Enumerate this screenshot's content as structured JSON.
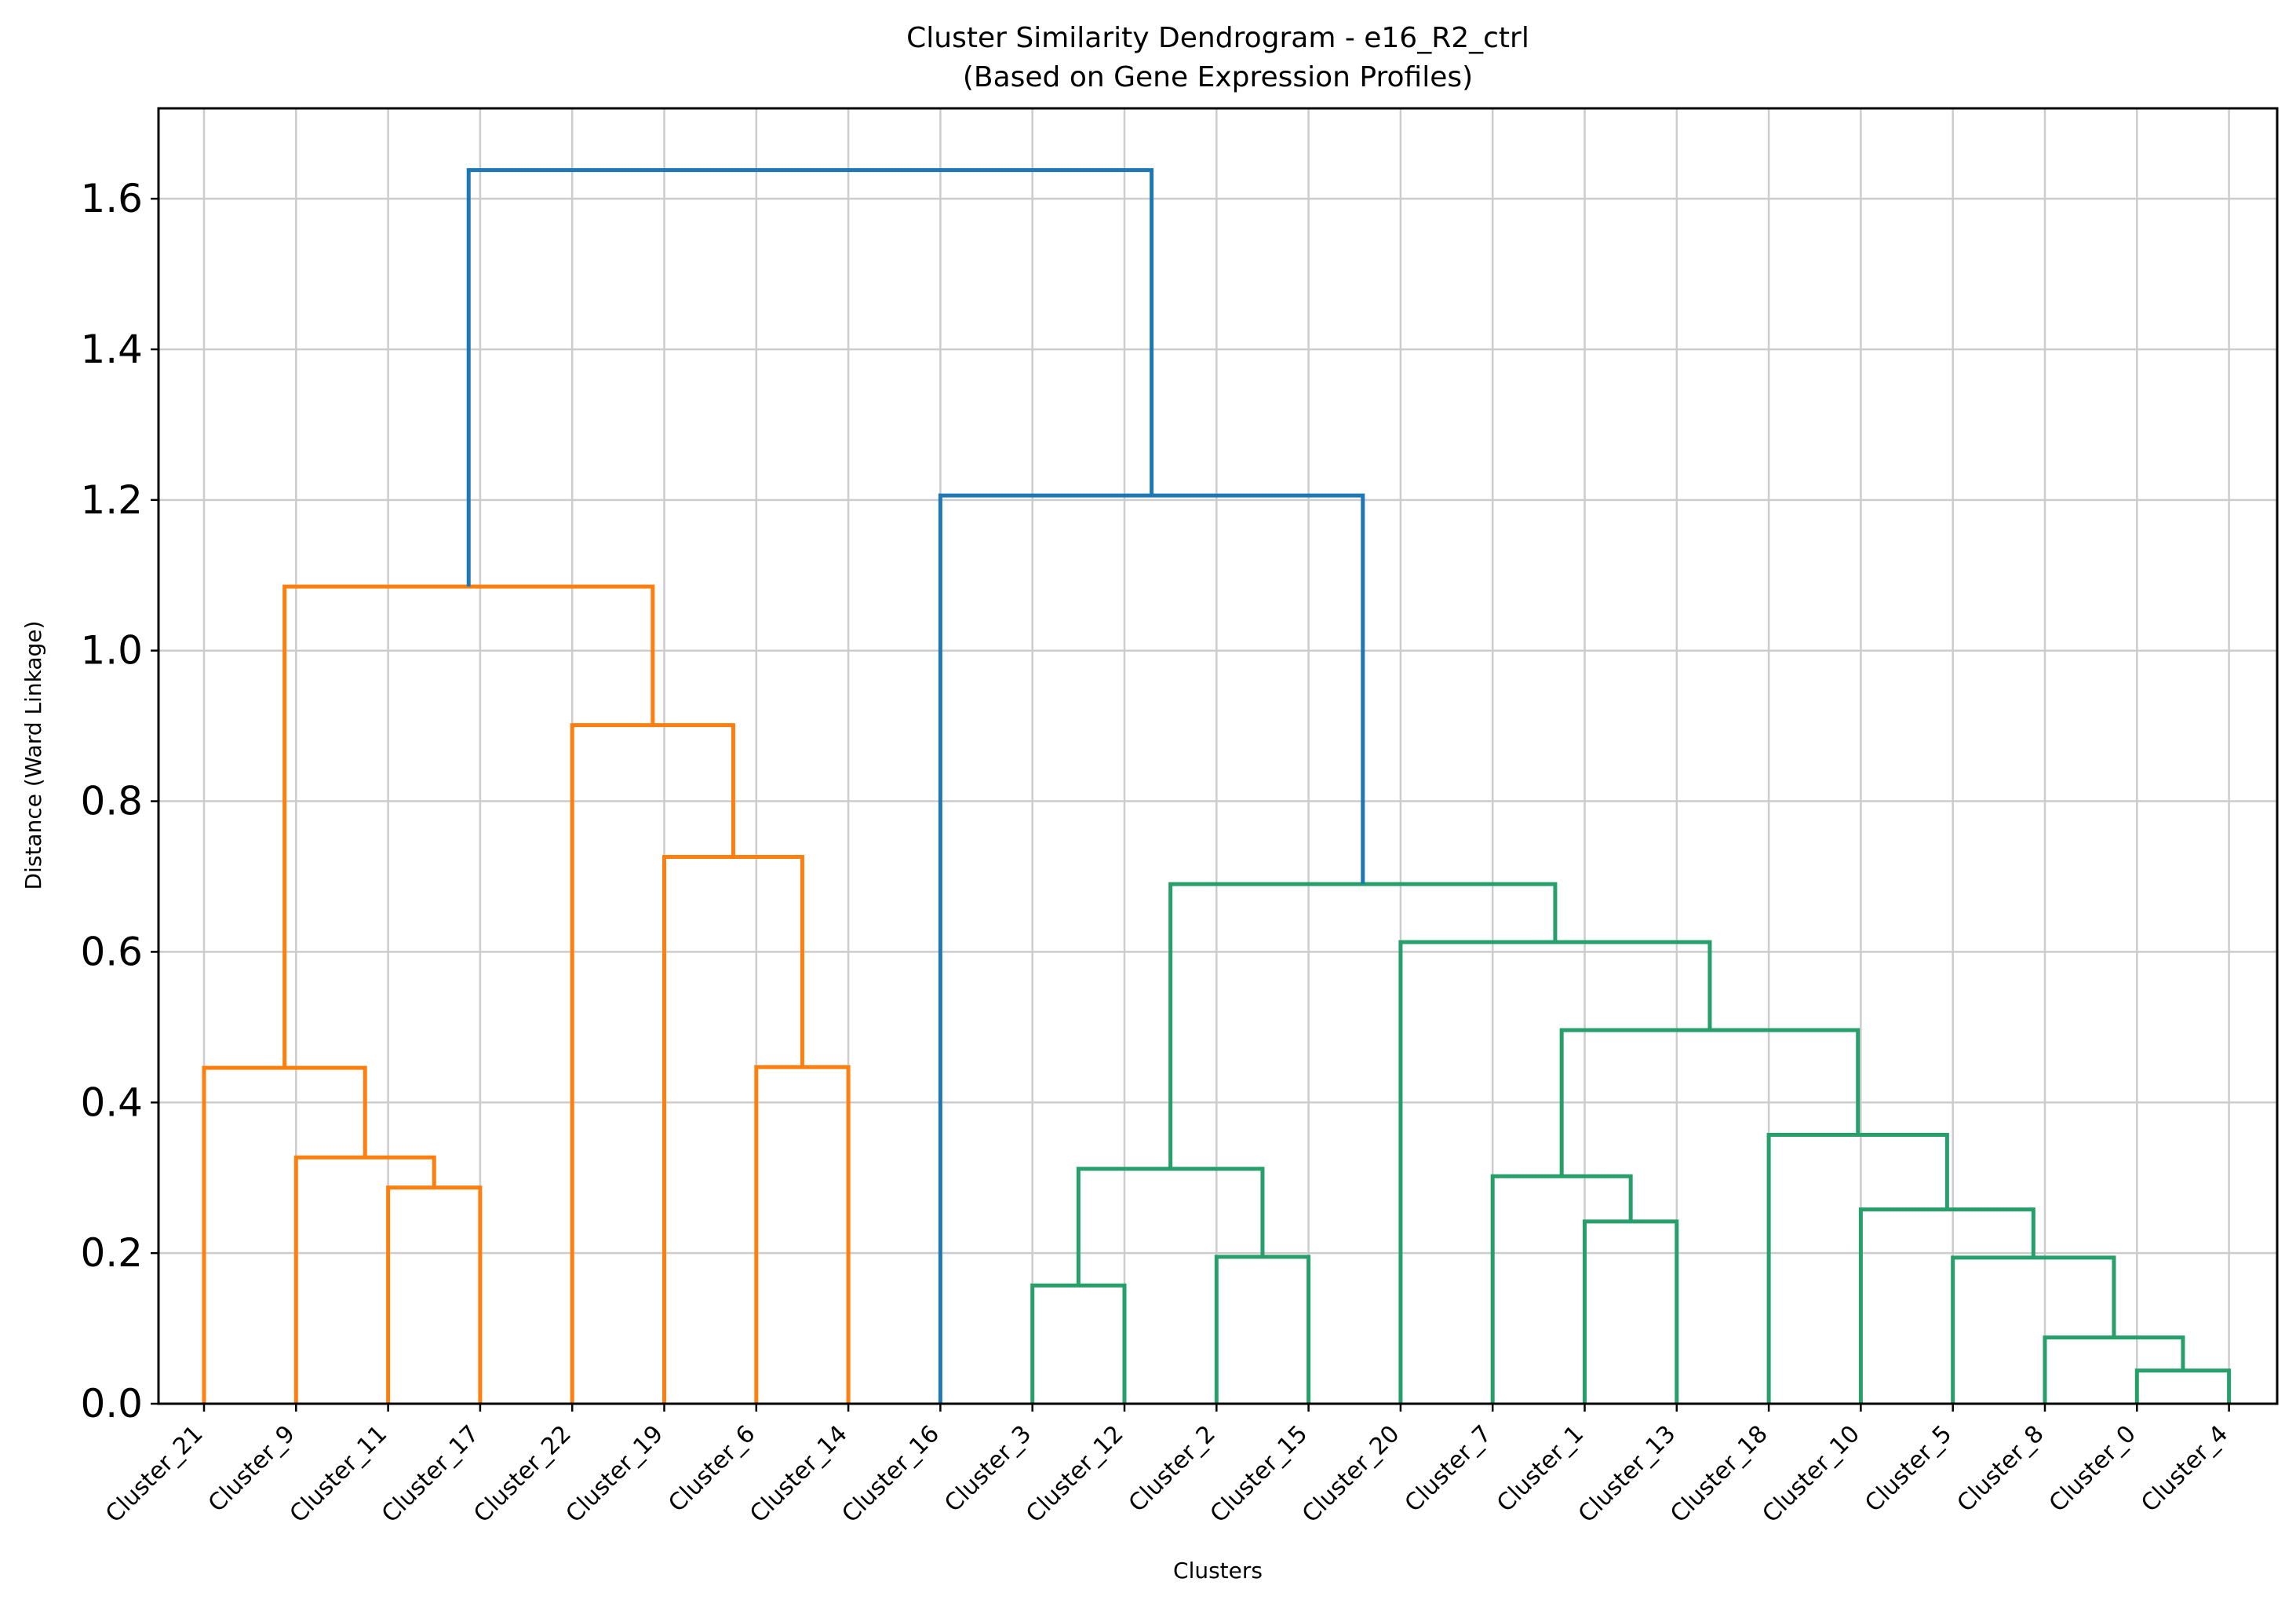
{
  "chart_data": {
    "type": "dendrogram",
    "title": "Cluster Similarity Dendrogram - e16_R2_ctrl",
    "subtitle": "(Based on Gene Expression Profiles)",
    "xlabel": "Clusters",
    "ylabel": "Distance (Ward Linkage)",
    "ylim": [
      0,
      1.72
    ],
    "yticks": [
      "0.0",
      "0.2",
      "0.4",
      "0.6",
      "0.8",
      "1.0",
      "1.2",
      "1.4",
      "1.6"
    ],
    "grid": true,
    "leaves": [
      "Cluster_21",
      "Cluster_9",
      "Cluster_11",
      "Cluster_17",
      "Cluster_22",
      "Cluster_19",
      "Cluster_6",
      "Cluster_14",
      "Cluster_16",
      "Cluster_3",
      "Cluster_12",
      "Cluster_2",
      "Cluster_15",
      "Cluster_20",
      "Cluster_7",
      "Cluster_1",
      "Cluster_13",
      "Cluster_18",
      "Cluster_10",
      "Cluster_5",
      "Cluster_8",
      "Cluster_0",
      "Cluster_4"
    ],
    "colors": {
      "orange": "#ff7f0e",
      "green": "#2ca02c",
      "teal": "#279f6b",
      "blue": "#1f77b4"
    },
    "merges": [
      {
        "id": "m1",
        "left": "Cluster_11",
        "right": "Cluster_17",
        "height": 0.287,
        "color": "orange"
      },
      {
        "id": "m2",
        "left": "Cluster_9",
        "right": "m1",
        "height": 0.327,
        "color": "orange"
      },
      {
        "id": "m3",
        "left": "Cluster_21",
        "right": "m2",
        "height": 0.446,
        "color": "orange"
      },
      {
        "id": "m4",
        "left": "Cluster_6",
        "right": "Cluster_14",
        "height": 0.447,
        "color": "orange"
      },
      {
        "id": "m5",
        "left": "Cluster_19",
        "right": "m4",
        "height": 0.726,
        "color": "orange"
      },
      {
        "id": "m6",
        "left": "Cluster_22",
        "right": "m5",
        "height": 0.901,
        "color": "orange"
      },
      {
        "id": "m7",
        "left": "m3",
        "right": "m6",
        "height": 1.085,
        "color": "orange"
      },
      {
        "id": "m8",
        "left": "Cluster_3",
        "right": "Cluster_12",
        "height": 0.157,
        "color": "teal"
      },
      {
        "id": "m9",
        "left": "Cluster_2",
        "right": "Cluster_15",
        "height": 0.195,
        "color": "teal"
      },
      {
        "id": "m10",
        "left": "m8",
        "right": "m9",
        "height": 0.312,
        "color": "teal"
      },
      {
        "id": "m11",
        "left": "Cluster_1",
        "right": "Cluster_13",
        "height": 0.242,
        "color": "teal"
      },
      {
        "id": "m12",
        "left": "Cluster_7",
        "right": "m11",
        "height": 0.302,
        "color": "teal"
      },
      {
        "id": "m13",
        "left": "Cluster_0",
        "right": "Cluster_4",
        "height": 0.044,
        "color": "teal"
      },
      {
        "id": "m14",
        "left": "Cluster_8",
        "right": "m13",
        "height": 0.088,
        "color": "teal"
      },
      {
        "id": "m15",
        "left": "Cluster_5",
        "right": "m14",
        "height": 0.194,
        "color": "teal"
      },
      {
        "id": "m16",
        "left": "Cluster_10",
        "right": "m15",
        "height": 0.258,
        "color": "teal"
      },
      {
        "id": "m17",
        "left": "Cluster_18",
        "right": "m16",
        "height": 0.357,
        "color": "teal"
      },
      {
        "id": "m18",
        "left": "m12",
        "right": "m17",
        "height": 0.496,
        "color": "teal"
      },
      {
        "id": "m19",
        "left": "Cluster_20",
        "right": "m18",
        "height": 0.613,
        "color": "teal"
      },
      {
        "id": "m20",
        "left": "m10",
        "right": "m19",
        "height": 0.69,
        "color": "teal"
      },
      {
        "id": "m21",
        "left": "Cluster_16",
        "right": "m20",
        "height": 1.206,
        "color": "blue"
      },
      {
        "id": "m22",
        "left": "m7",
        "right": "m21",
        "height": 1.638,
        "color": "blue"
      }
    ]
  }
}
